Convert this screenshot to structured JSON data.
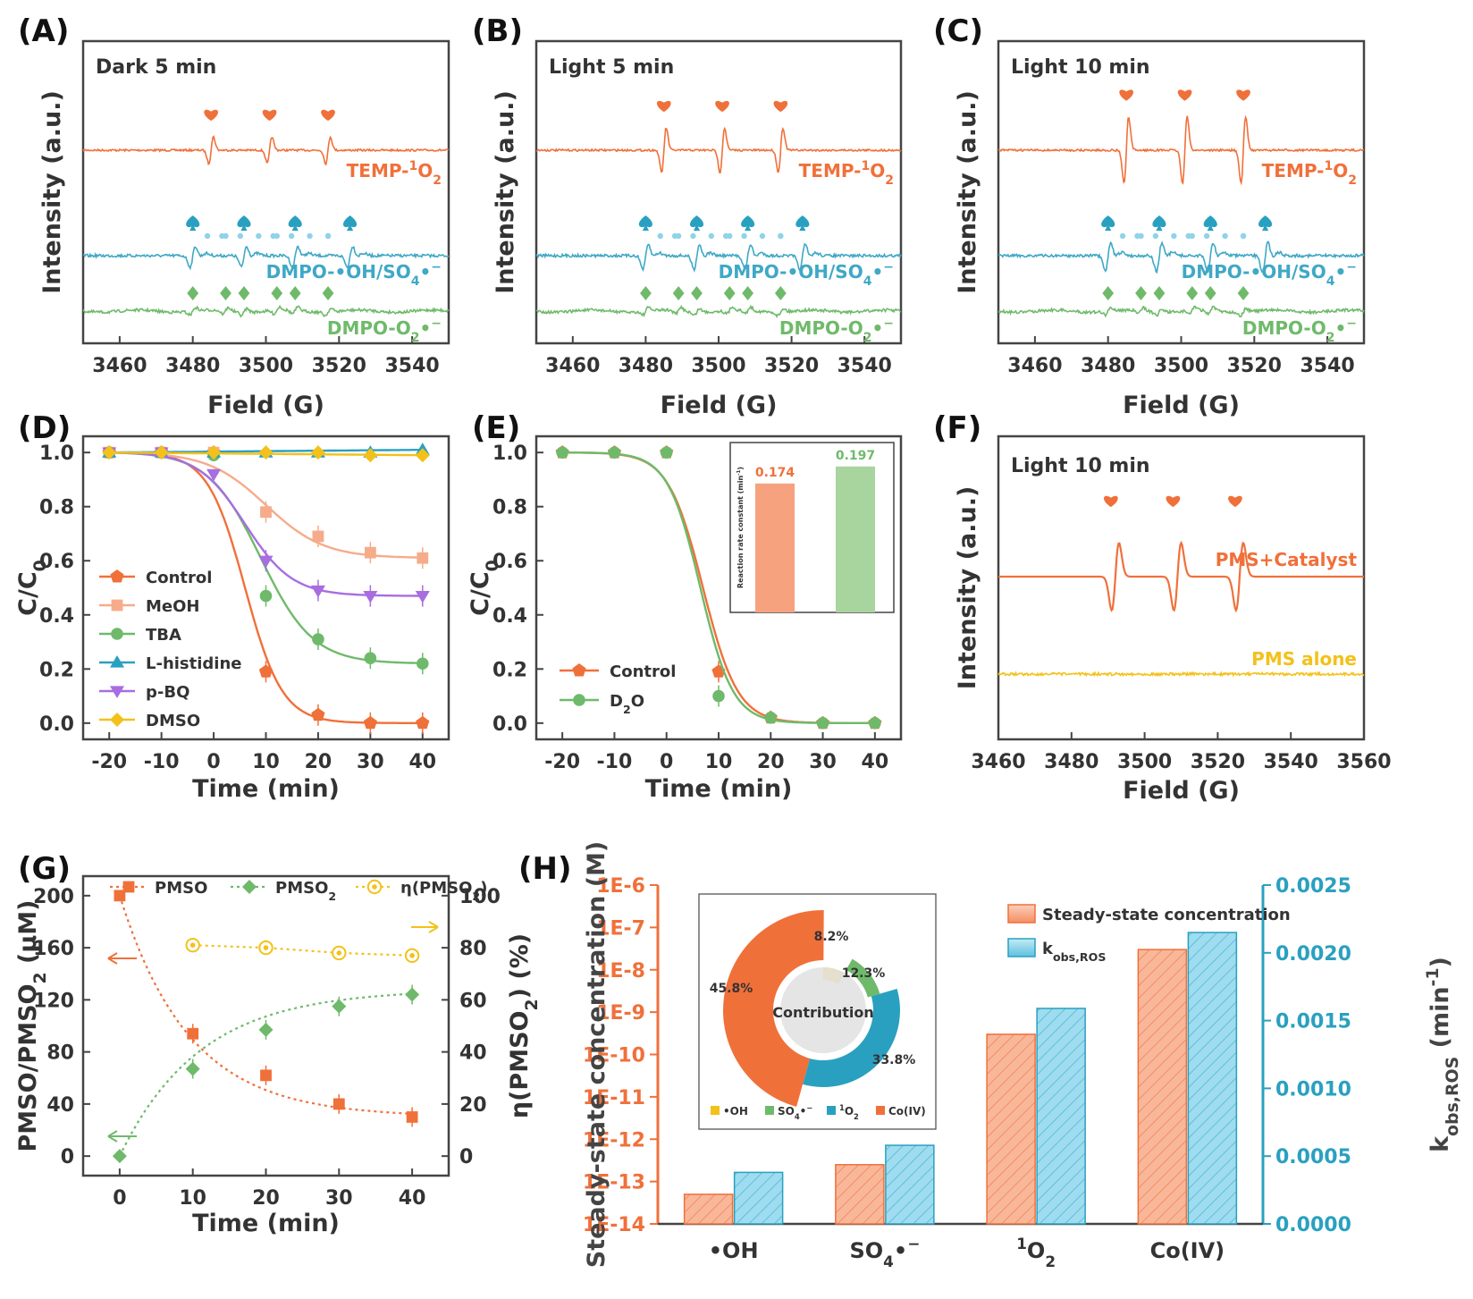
{
  "colors": {
    "orange": "#f0703a",
    "blue": "#3fa8c6",
    "green": "#6fba6a",
    "yellow": "#f3c11a",
    "peach": "#f6ab8a",
    "purple": "#a86de0",
    "teal": "#2aa0c0",
    "lightblue": "#8fd3ea",
    "grey": "#e2e2e2"
  },
  "icons": {
    "heart": "heart-icon",
    "spade": "spade-icon",
    "diamond": "diamond-icon",
    "dot": "dot-icon"
  },
  "chart_data": [
    {
      "id": "A",
      "panel_label": "(A)",
      "type": "line",
      "title": "Dark 5 min",
      "xlabel": "Field (G)",
      "ylabel": "Intensity (a.u.)",
      "xlim": [
        3450,
        3550
      ],
      "xticks": [
        "3460",
        "3480",
        "3500",
        "3520",
        "3540"
      ],
      "series": [
        {
          "name": "TEMP-1O2",
          "label_main": "TEMP-",
          "label_sup": "1",
          "label_tail": "O",
          "label_sub": "2",
          "peaks": [
            3485,
            3501,
            3517
          ],
          "amp": 0.6
        },
        {
          "name": "DMPO-•OH/SO4•−",
          "label_main": "DMPO-•OH/SO",
          "label_sub": "4",
          "label_tail": "•",
          "label_sup": "−",
          "peaks": [
            3480,
            3494,
            3508,
            3523
          ],
          "amp": 0.5
        },
        {
          "name": "DMPO-O2•−",
          "label_main": "DMPO-O",
          "label_sub": "2",
          "label_tail": "•",
          "label_sup": "−",
          "peaks": [
            3480,
            3489,
            3494,
            3503,
            3508,
            3517
          ],
          "amp": 0.3
        }
      ]
    },
    {
      "id": "B",
      "panel_label": "(B)",
      "type": "line",
      "title": "Light 5 min",
      "xlabel": "Field (G)",
      "ylabel": "Intensity (a.u.)",
      "xlim": [
        3450,
        3550
      ],
      "xticks": [
        "3460",
        "3480",
        "3500",
        "3520",
        "3540"
      ],
      "series": [
        {
          "name": "TEMP-1O2",
          "label_main": "TEMP-",
          "label_sup": "1",
          "label_tail": "O",
          "label_sub": "2",
          "peaks": [
            3485,
            3501,
            3517
          ],
          "amp": 1.0
        },
        {
          "name": "DMPO-•OH/SO4•−",
          "label_main": "DMPO-•OH/SO",
          "label_sub": "4",
          "label_tail": "•",
          "label_sup": "−",
          "peaks": [
            3480,
            3494,
            3508,
            3523
          ],
          "amp": 0.6
        },
        {
          "name": "DMPO-O2•−",
          "label_main": "DMPO-O",
          "label_sub": "2",
          "label_tail": "•",
          "label_sup": "−",
          "peaks": [
            3480,
            3489,
            3494,
            3503,
            3508,
            3517
          ],
          "amp": 0.3
        }
      ]
    },
    {
      "id": "C",
      "panel_label": "(C)",
      "type": "line",
      "title": "Light 10 min",
      "xlabel": "Field (G)",
      "ylabel": "Intensity (a.u.)",
      "xlim": [
        3450,
        3550
      ],
      "xticks": [
        "3460",
        "3480",
        "3500",
        "3520",
        "3540"
      ],
      "series": [
        {
          "name": "TEMP-1O2",
          "label_main": "TEMP-",
          "label_sup": "1",
          "label_tail": "O",
          "label_sub": "2",
          "peaks": [
            3485,
            3501,
            3517
          ],
          "amp": 1.5
        },
        {
          "name": "DMPO-•OH/SO4•−",
          "label_main": "DMPO-•OH/SO",
          "label_sub": "4",
          "label_tail": "•",
          "label_sup": "−",
          "peaks": [
            3480,
            3494,
            3508,
            3523
          ],
          "amp": 0.7
        },
        {
          "name": "DMPO-O2•−",
          "label_main": "DMPO-O",
          "label_sub": "2",
          "label_tail": "•",
          "label_sup": "−",
          "peaks": [
            3480,
            3489,
            3494,
            3503,
            3508,
            3517
          ],
          "amp": 0.3
        }
      ]
    },
    {
      "id": "D",
      "panel_label": "(D)",
      "type": "line",
      "xlabel": "Time (min)",
      "ylabel_main": "C/C",
      "ylabel_sub": "0",
      "xlim": [
        -25,
        45
      ],
      "ylim": [
        -0.06,
        1.06
      ],
      "xticks": [
        "-20",
        "-10",
        "0",
        "10",
        "20",
        "30",
        "40"
      ],
      "yticks": [
        "0.0",
        "0.2",
        "0.4",
        "0.6",
        "0.8",
        "1.0"
      ],
      "x": [
        -20,
        -10,
        0,
        10,
        20,
        30,
        40
      ],
      "series": [
        {
          "name": "Control",
          "values": [
            1.0,
            1.0,
            1.0,
            0.19,
            0.03,
            0.0,
            0.0
          ]
        },
        {
          "name": "MeOH",
          "values": [
            1.0,
            1.0,
            1.0,
            0.78,
            0.69,
            0.63,
            0.61
          ]
        },
        {
          "name": "TBA",
          "values": [
            1.0,
            1.0,
            0.99,
            0.47,
            0.31,
            0.24,
            0.22
          ]
        },
        {
          "name": "L-histidine",
          "values": [
            1.0,
            1.0,
            1.0,
            1.0,
            1.0,
            1.0,
            1.01
          ]
        },
        {
          "name": "p-BQ",
          "values": [
            1.0,
            1.0,
            0.92,
            0.6,
            0.49,
            0.47,
            0.47
          ]
        },
        {
          "name": "DMSO",
          "values": [
            1.0,
            1.0,
            1.0,
            1.0,
            1.0,
            0.99,
            0.99
          ]
        }
      ]
    },
    {
      "id": "E",
      "panel_label": "(E)",
      "type": "line",
      "xlabel": "Time (min)",
      "ylabel_main": "C/C",
      "ylabel_sub": "0",
      "xlim": [
        -25,
        45
      ],
      "ylim": [
        -0.06,
        1.06
      ],
      "xticks": [
        "-20",
        "-10",
        "0",
        "10",
        "20",
        "30",
        "40"
      ],
      "yticks": [
        "0.0",
        "0.2",
        "0.4",
        "0.6",
        "0.8",
        "1.0"
      ],
      "x": [
        -20,
        -10,
        0,
        10,
        20,
        30,
        40
      ],
      "series": [
        {
          "name": "Control",
          "values": [
            1.0,
            1.0,
            1.0,
            0.19,
            0.02,
            0.0,
            0.0
          ]
        },
        {
          "name": "D2O",
          "label_main": "D",
          "label_sub": "2",
          "label_tail": "O",
          "values": [
            1.0,
            1.0,
            1.0,
            0.1,
            0.02,
            0.0,
            0.0
          ]
        }
      ],
      "inset": {
        "type": "bar",
        "ylabel": "Reaction rate constant (min",
        "ylabel_sup": "-1",
        "ylabel_tail": ")",
        "values": [
          0.174,
          0.197
        ],
        "value_labels": [
          "0.174",
          "0.197"
        ]
      }
    },
    {
      "id": "F",
      "panel_label": "(F)",
      "type": "line",
      "title": "Light 10 min",
      "xlabel": "Field (G)",
      "ylabel": "Intensity (a.u.)",
      "xlim": [
        3460,
        3560
      ],
      "xticks": [
        "3460",
        "3480",
        "3500",
        "3520",
        "3540",
        "3560"
      ],
      "series": [
        {
          "name": "PMS+Catalyst",
          "peaks": [
            3492,
            3509,
            3526
          ],
          "amp": 1.6
        },
        {
          "name": "PMS alone",
          "peaks": [],
          "amp": 0
        }
      ]
    },
    {
      "id": "G",
      "panel_label": "(G)",
      "type": "line",
      "xlabel": "Time (min)",
      "ylabel_main": "PMSO/PMSO",
      "ylabel_sub": "2",
      "ylabel_tail": " (μM)",
      "y2label_main": "η(PMSO",
      "y2label_sub": "2",
      "y2label_tail": ") (%)",
      "xlim": [
        -5,
        45
      ],
      "ylim": [
        -15,
        215
      ],
      "y2lim": [
        -7.5,
        107.5
      ],
      "xticks": [
        "0",
        "10",
        "20",
        "30",
        "40"
      ],
      "yticks": [
        "0",
        "40",
        "80",
        "120",
        "160",
        "200"
      ],
      "y2ticks": [
        "0",
        "20",
        "40",
        "60",
        "80",
        "100"
      ],
      "x": [
        0,
        10,
        20,
        30,
        40
      ],
      "series": [
        {
          "name": "PMSO",
          "values": [
            200,
            94,
            62,
            40,
            30
          ]
        },
        {
          "name": "PMSO2",
          "label_main": "PMSO",
          "label_sub": "2",
          "values": [
            0,
            67,
            97,
            115,
            124
          ]
        },
        {
          "name": "η(PMSO2)",
          "label_main": "η(PMSO",
          "label_sub": "2",
          "label_tail": ")",
          "x": [
            10,
            20,
            30,
            40
          ],
          "values": [
            81,
            80,
            78,
            77
          ]
        }
      ]
    },
    {
      "id": "H",
      "panel_label": "(H)",
      "type": "bar",
      "ylabel": "Steady-state concentration (M)",
      "y2label_main": "k",
      "y2label_sub": "obs,ROS",
      "y2label_tail": " (min",
      "y2label_sup": "-1",
      "y2label_end": ")",
      "yticks": [
        "1E-14",
        "1E-13",
        "1E-12",
        "1E-11",
        "1E-10",
        "1E-9",
        "1E-8",
        "1E-7",
        "1E-6"
      ],
      "y2ticks": [
        "0.0000",
        "0.0005",
        "0.0010",
        "0.0015",
        "0.0020",
        "0.0025"
      ],
      "ylim_log10": [
        -14,
        -6
      ],
      "y2lim": [
        0,
        0.0025
      ],
      "categories": [
        "•OH",
        "SO4•−",
        "1O2",
        "Co(IV)"
      ],
      "category_labels": [
        {
          "main": "•OH"
        },
        {
          "main": "SO",
          "sub": "4",
          "tail": "•",
          "sup": "−"
        },
        {
          "sup": "1",
          "main": "O",
          "sub": "2"
        },
        {
          "main": "Co(IV)"
        }
      ],
      "series": [
        {
          "name": "Steady-state concentration",
          "values": [
            5e-14,
            2.5e-13,
            3e-10,
            3e-08
          ]
        },
        {
          "name": "kobs,ROS",
          "label_main": "k",
          "label_sub": "obs,ROS",
          "values": [
            0.00038,
            0.00058,
            0.00159,
            0.00215
          ]
        }
      ],
      "inset": {
        "type": "pie",
        "center_label": "Contribution",
        "slices": [
          {
            "name": "•OH",
            "value": 8.2,
            "label": "8.2%"
          },
          {
            "name": "SO4•−",
            "value": 12.3,
            "label": "12.3%"
          },
          {
            "name": "1O2",
            "value": 33.8,
            "label": "33.8%"
          },
          {
            "name": "Co(IV)",
            "value": 45.8,
            "label": "45.8%"
          }
        ],
        "legend": [
          {
            "main": "•OH"
          },
          {
            "main": "SO",
            "sub": "4",
            "tail": "•",
            "sup": "−"
          },
          {
            "sup": "1",
            "main": "O",
            "sub": "2"
          },
          {
            "main": "Co(IV)"
          }
        ]
      }
    }
  ]
}
